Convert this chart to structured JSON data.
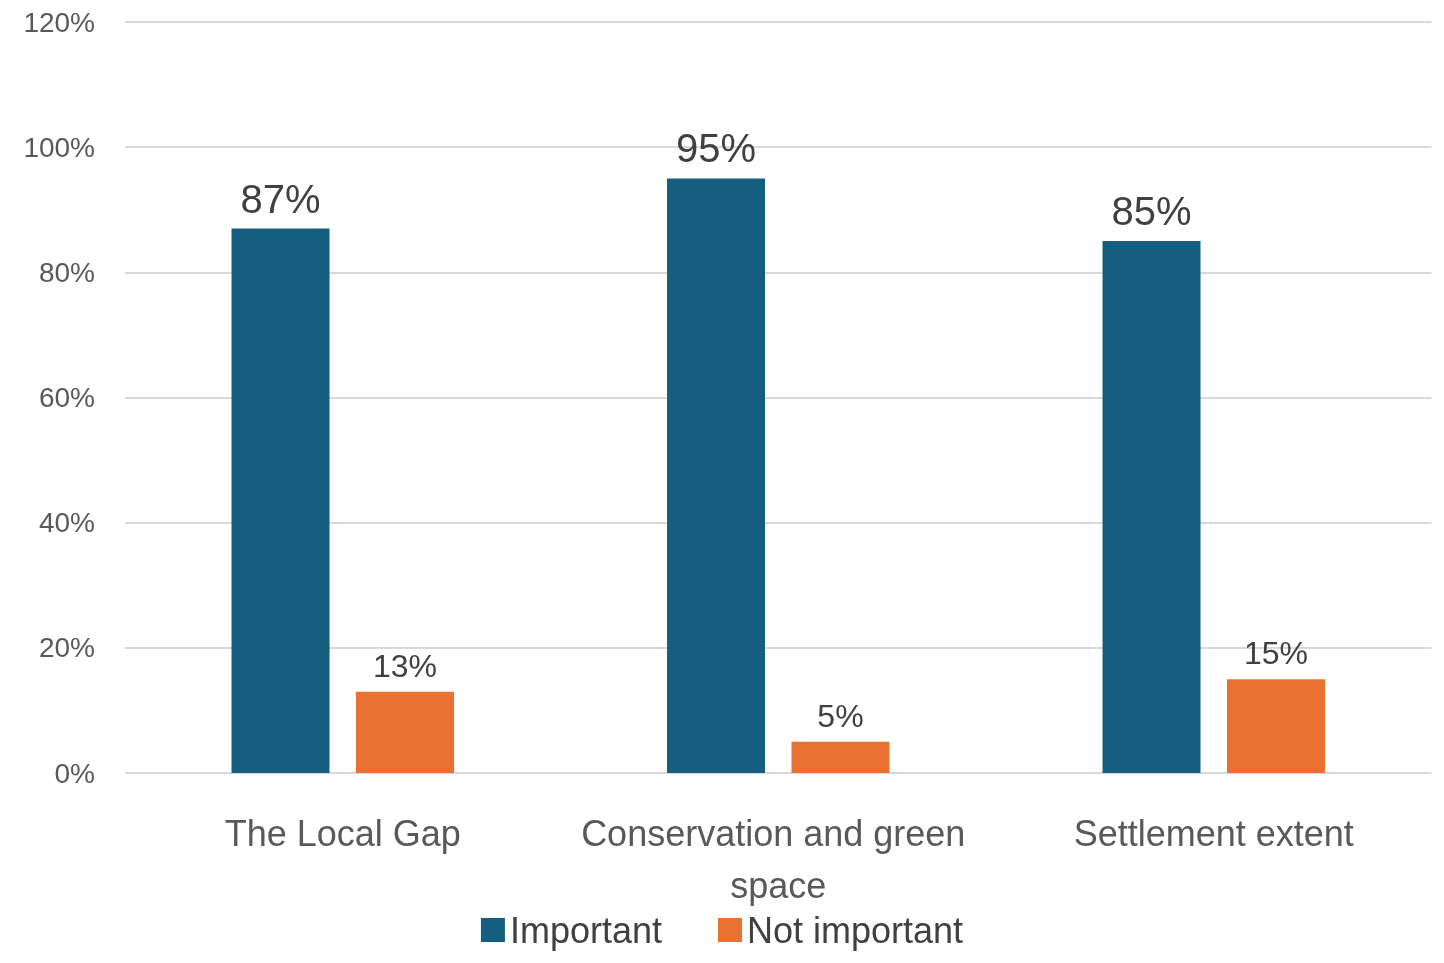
{
  "chart_data": {
    "type": "bar",
    "categories": [
      "The Local Gap",
      "Conservation and green space",
      "Settlement extent"
    ],
    "series": [
      {
        "name": "Important",
        "color": "#165e80",
        "values": [
          87,
          95,
          85
        ]
      },
      {
        "name": "Not important",
        "color": "#e97132",
        "values": [
          13,
          5,
          15
        ]
      }
    ],
    "ylim": [
      0,
      120
    ],
    "yticks": [
      {
        "value": 0,
        "label": "0%"
      },
      {
        "value": 20,
        "label": "20%"
      },
      {
        "value": 40,
        "label": "40%"
      },
      {
        "value": 60,
        "label": "60%"
      },
      {
        "value": 80,
        "label": "80%"
      },
      {
        "value": 100,
        "label": "100%"
      },
      {
        "value": 120,
        "label": "120%"
      }
    ],
    "value_labels": [
      [
        "87%",
        "95%",
        "85%"
      ],
      [
        "13%",
        "5%",
        "15%"
      ]
    ],
    "grid": "y",
    "legend": "bottom"
  }
}
